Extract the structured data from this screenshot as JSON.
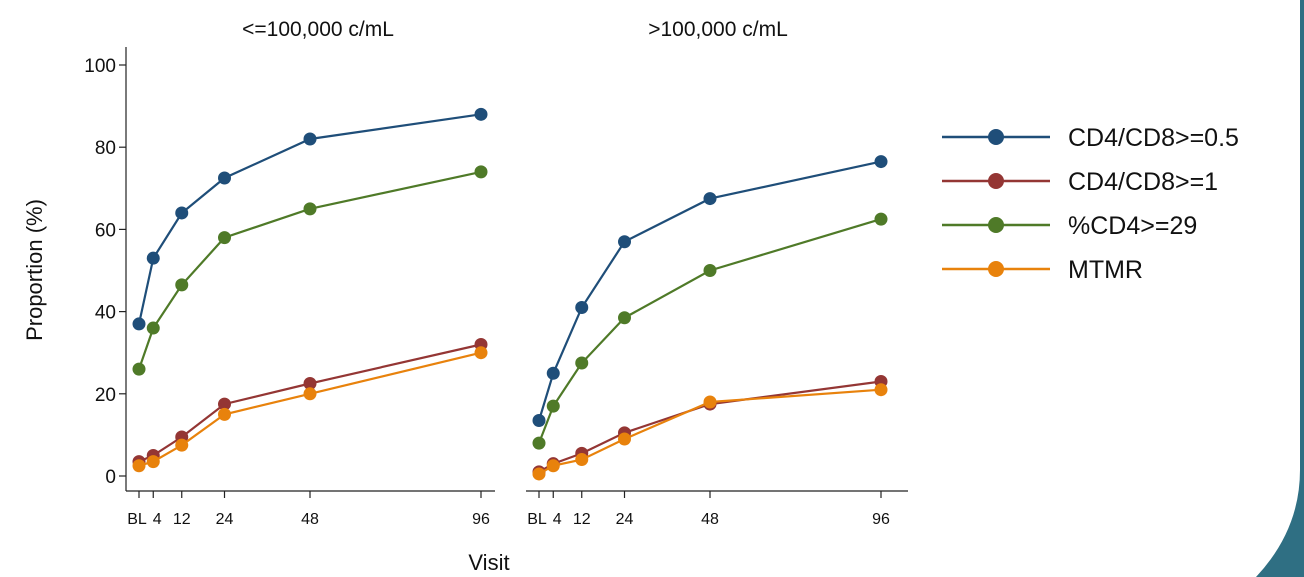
{
  "chart_data": [
    {
      "type": "line",
      "title": "<=100,000 c/mL",
      "ylabel": "Proportion (%)",
      "ylim": [
        0,
        100
      ],
      "yticks": [
        0,
        20,
        40,
        60,
        80,
        100
      ],
      "xlim": [
        0,
        96
      ],
      "xticks": [
        0,
        4,
        12,
        24,
        48,
        96
      ],
      "xtick_labels": [
        "BL",
        "4",
        "12",
        "24",
        "48",
        "96"
      ],
      "grid": false,
      "series": [
        {
          "name": "CD4/CD8>=0.5",
          "color": "#1f4e79",
          "x": [
            0,
            4,
            12,
            24,
            48,
            96
          ],
          "y": [
            37,
            53,
            64,
            72.5,
            82,
            88
          ]
        },
        {
          "name": "CD4/CD8>=1",
          "color": "#943634",
          "x": [
            0,
            4,
            12,
            24,
            48,
            96
          ],
          "y": [
            3.5,
            5,
            9.5,
            17.5,
            22.5,
            32
          ]
        },
        {
          "name": "%CD4>=29",
          "color": "#4f7a28",
          "x": [
            0,
            4,
            12,
            24,
            48,
            96
          ],
          "y": [
            26,
            36,
            46.5,
            58,
            65,
            74
          ]
        },
        {
          "name": "MTMR",
          "color": "#e8820c",
          "x": [
            0,
            4,
            12,
            24,
            48,
            96
          ],
          "y": [
            2.5,
            3.5,
            7.5,
            15,
            20,
            30
          ]
        }
      ]
    },
    {
      "type": "line",
      "title": ">100,000 c/mL",
      "ylim": [
        0,
        100
      ],
      "xlim": [
        0,
        96
      ],
      "xticks": [
        0,
        4,
        12,
        24,
        48,
        96
      ],
      "xtick_labels": [
        "BL",
        "4",
        "12",
        "24",
        "48",
        "96"
      ],
      "grid": false,
      "series": [
        {
          "name": "CD4/CD8>=0.5",
          "color": "#1f4e79",
          "x": [
            0,
            4,
            12,
            24,
            48,
            96
          ],
          "y": [
            13.5,
            25,
            41,
            57,
            67.5,
            76.5
          ]
        },
        {
          "name": "CD4/CD8>=1",
          "color": "#943634",
          "x": [
            0,
            4,
            12,
            24,
            48,
            96
          ],
          "y": [
            1,
            3,
            5.5,
            10.5,
            17.5,
            23
          ]
        },
        {
          "name": "%CD4>=29",
          "color": "#4f7a28",
          "x": [
            0,
            4,
            12,
            24,
            48,
            96
          ],
          "y": [
            8,
            17,
            27.5,
            38.5,
            50,
            62.5
          ]
        },
        {
          "name": "MTMR",
          "color": "#e8820c",
          "x": [
            0,
            4,
            12,
            24,
            48,
            96
          ],
          "y": [
            0.5,
            2.5,
            4,
            9,
            18,
            21
          ]
        }
      ]
    }
  ],
  "figure": {
    "xlabel": "Visit",
    "legend_position": "right",
    "legend": [
      {
        "label": "CD4/CD8>=0.5",
        "color": "#1f4e79"
      },
      {
        "label": "CD4/CD8>=1",
        "color": "#943634"
      },
      {
        "label": "%CD4>=29",
        "color": "#4f7a28"
      },
      {
        "label": "MTMR",
        "color": "#e8820c"
      }
    ],
    "accent_color": "#2f6f83"
  }
}
